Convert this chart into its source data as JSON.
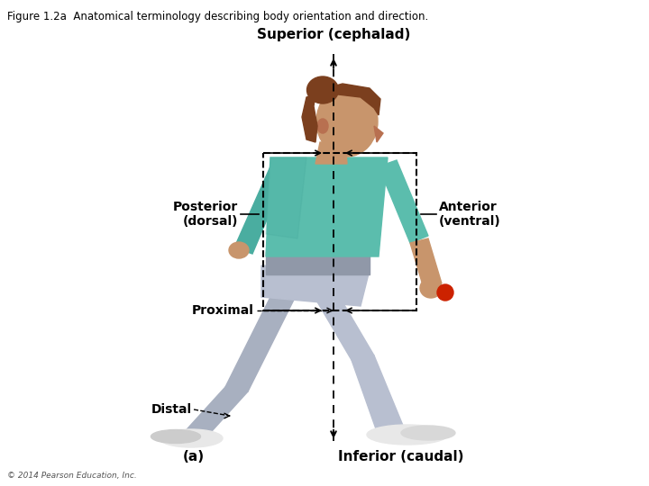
{
  "title": "Figure 1.2a  Anatomical terminology describing body orientation and direction.",
  "background_color": "#ffffff",
  "labels": {
    "superior": "Superior (cephalad)",
    "inferior": "Inferior (caudal)",
    "posterior": "Posterior\n(dorsal)",
    "anterior": "Anterior\n(ventral)",
    "proximal": "Proximal",
    "distal": "Distal",
    "subfig": "(a)",
    "copyright": "© 2014 Pearson Education, Inc."
  },
  "skin_color": "#c8956c",
  "hair_color": "#7b3f1e",
  "shirt_color": "#5bbdad",
  "shirt_dark": "#4aada0",
  "pants_color": "#b8bfd0",
  "pants_dark": "#a8b0c0",
  "shoe_color": "#e8e8e8",
  "shoe_dark": "#d0d0d0",
  "red_ball": "#cc2200",
  "arrow_color": "#000000",
  "label_fontsize": 10,
  "title_fontsize": 8.5,
  "superior_fontsize": 11,
  "inferior_fontsize": 11,
  "subfig_fontsize": 11
}
